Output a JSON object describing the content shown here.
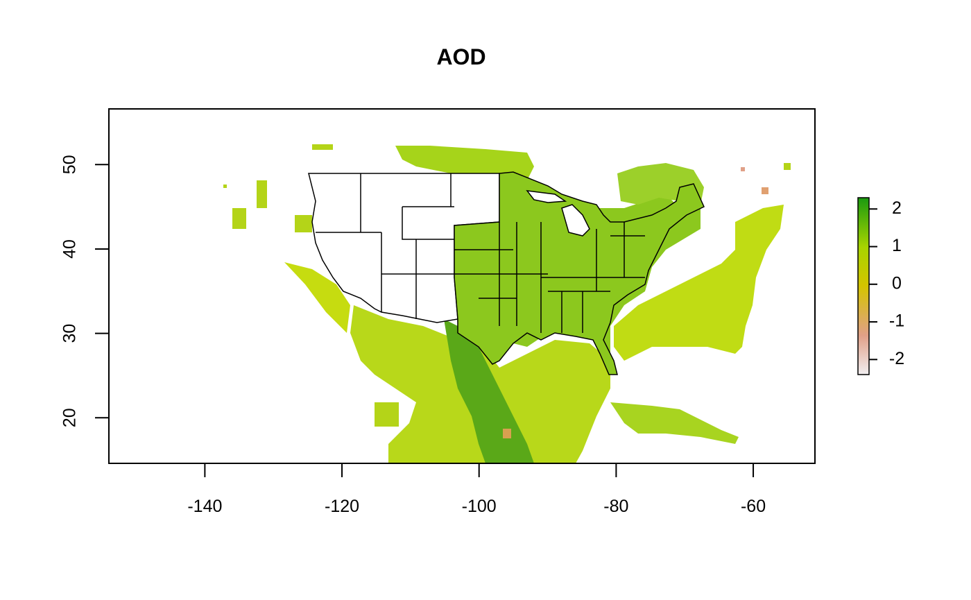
{
  "chart_data": {
    "type": "heatmap",
    "title": "AOD",
    "xlabel": "",
    "ylabel": "",
    "xlim": [
      -154,
      -51
    ],
    "ylim": [
      14.6,
      56.6
    ],
    "x_ticks": [
      -140,
      -120,
      -100,
      -80,
      -60
    ],
    "y_ticks": [
      20,
      30,
      40,
      50
    ],
    "x_tick_labels": [
      "-140",
      "-120",
      "-100",
      "-80",
      "-60"
    ],
    "y_tick_labels": [
      "20",
      "30",
      "40",
      "50"
    ],
    "legend": {
      "type": "colorbar",
      "placement": "right",
      "range": [
        -2.4,
        2.3
      ],
      "ticks": [
        -2,
        -1,
        0,
        1,
        2
      ],
      "tick_labels": [
        "-2",
        "-1",
        "0",
        "1",
        "2"
      ],
      "colors": [
        "#f1eef0",
        "#e0a088",
        "#d4c400",
        "#a8d400",
        "#1a9a10"
      ]
    },
    "overlay": "US state boundaries",
    "grid": false
  }
}
